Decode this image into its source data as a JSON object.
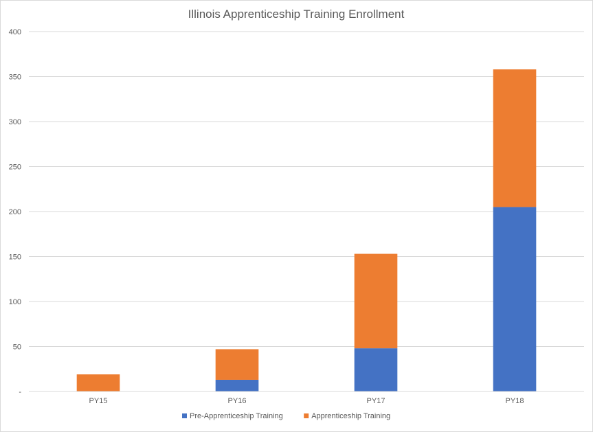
{
  "chart_data": {
    "type": "bar",
    "stacked": true,
    "title": "Illinois Apprenticeship Training Enrollment",
    "xlabel": "",
    "ylabel": "",
    "categories": [
      "PY15",
      "PY16",
      "PY17",
      "PY18"
    ],
    "series": [
      {
        "name": "Pre-Apprenticeship Training",
        "values": [
          0,
          13,
          48,
          205
        ],
        "color": "#4472c4"
      },
      {
        "name": "Apprenticeship Training",
        "values": [
          19,
          34,
          105,
          153
        ],
        "color": "#ed7d31"
      }
    ],
    "ylim": [
      0,
      400
    ],
    "yticks": [
      "-",
      "50",
      "100",
      "150",
      "200",
      "250",
      "300",
      "350",
      "400"
    ],
    "grid": true,
    "legend_position": "bottom"
  }
}
